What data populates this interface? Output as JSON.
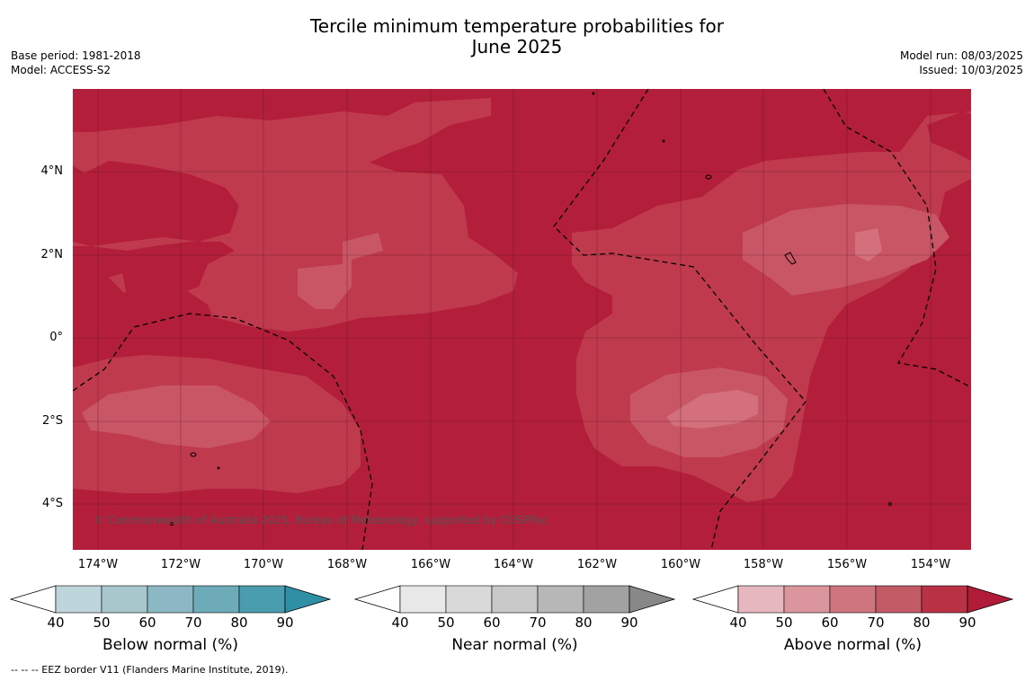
{
  "title_line1": "Tercile minimum temperature probabilities for",
  "title_line2": "June 2025",
  "meta_left": [
    "Base period: 1981-2018",
    "Model: ACCESS-S2"
  ],
  "meta_right": [
    "Model run: 08/03/2025",
    "Issued: 10/03/2025"
  ],
  "lat_labels": [
    "4°N",
    "2°N",
    "0°",
    "2°S",
    "4°S"
  ],
  "lon_labels": [
    "174°W",
    "172°W",
    "170°W",
    "168°W",
    "166°W",
    "164°W",
    "162°W",
    "160°W",
    "158°W",
    "156°W",
    "154°W"
  ],
  "copyright": "© Commonwealth of Australia 2025, Bureau of Meteorology, supported by COSPPac",
  "footnote": "--  --  -- EEZ border V11 (Flanders Marine Institute, 2019).",
  "colorbars": [
    {
      "label": "Below normal (%)",
      "ticks": [
        "40",
        "50",
        "60",
        "70",
        "80",
        "90"
      ],
      "colors": [
        "#bfd5dc",
        "#a7c7cd",
        "#8cb8c4",
        "#6dabb9",
        "#4a9daf",
        "#2f8fa4"
      ]
    },
    {
      "label": "Near normal (%)",
      "ticks": [
        "40",
        "50",
        "60",
        "70",
        "80",
        "90"
      ],
      "colors": [
        "#e8e8e8",
        "#d9d9d9",
        "#c9c9c9",
        "#b7b7b7",
        "#a2a2a2",
        "#888888"
      ]
    },
    {
      "label": "Above normal (%)",
      "ticks": [
        "40",
        "50",
        "60",
        "70",
        "80",
        "90"
      ],
      "colors": [
        "#e6b7be",
        "#da959d",
        "#cf757f",
        "#c35b67",
        "#b83145",
        "#b01c38"
      ]
    }
  ],
  "map_colors": {
    "above_80": "#b31e3a",
    "above_70": "#bf3a4d",
    "above_60": "#c85665",
    "above_50": "#d3707c"
  }
}
